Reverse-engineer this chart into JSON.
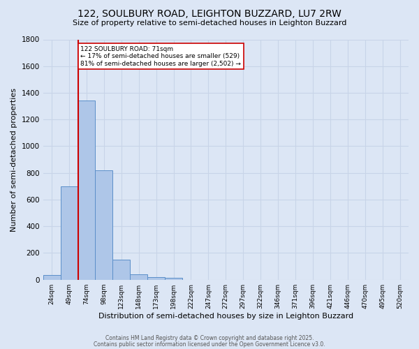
{
  "title": "122, SOULBURY ROAD, LEIGHTON BUZZARD, LU7 2RW",
  "subtitle": "Size of property relative to semi-detached houses in Leighton Buzzard",
  "xlabel": "Distribution of semi-detached houses by size in Leighton Buzzard",
  "ylabel": "Number of semi-detached properties",
  "bin_labels": [
    "24sqm",
    "49sqm",
    "74sqm",
    "98sqm",
    "123sqm",
    "148sqm",
    "173sqm",
    "198sqm",
    "222sqm",
    "247sqm",
    "272sqm",
    "297sqm",
    "322sqm",
    "346sqm",
    "371sqm",
    "396sqm",
    "421sqm",
    "446sqm",
    "470sqm",
    "495sqm",
    "520sqm"
  ],
  "bar_values": [
    35,
    700,
    1340,
    820,
    150,
    38,
    22,
    12,
    0,
    0,
    0,
    0,
    0,
    0,
    0,
    0,
    0,
    0,
    0,
    0,
    0
  ],
  "bar_color": "#aec6e8",
  "bar_edge_color": "#5b8fc9",
  "red_line_color": "#cc0000",
  "red_line_bin": 2,
  "annotation_title": "122 SOULBURY ROAD: 71sqm",
  "annotation_line1": "← 17% of semi-detached houses are smaller (529)",
  "annotation_line2": "81% of semi-detached houses are larger (2,502) →",
  "annotation_box_color": "#ffffff",
  "annotation_box_edge": "#cc0000",
  "grid_color": "#c8d4e8",
  "background_color": "#dce6f5",
  "ylim": [
    0,
    1800
  ],
  "yticks": [
    0,
    200,
    400,
    600,
    800,
    1000,
    1200,
    1400,
    1600,
    1800
  ],
  "footer1": "Contains HM Land Registry data © Crown copyright and database right 2025.",
  "footer2": "Contains public sector information licensed under the Open Government Licence v3.0."
}
